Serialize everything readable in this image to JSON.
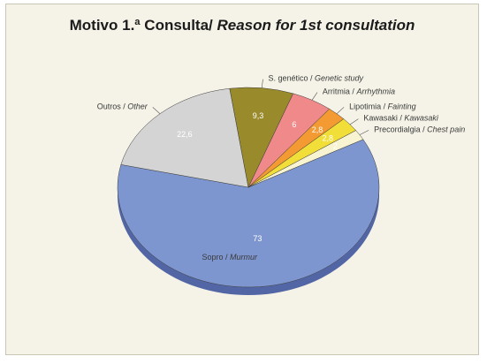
{
  "chart_data": {
    "type": "pie",
    "title_main": "Motivo 1.ª Consulta/ ",
    "title_italic": "Reason for 1st consultation",
    "slices": [
      {
        "label_pt": "Sopro / ",
        "label_en": "Murmur",
        "value": 73,
        "value_label": "73",
        "color": "#7e96cf",
        "side": "#5266a6"
      },
      {
        "label_pt": "Outros / ",
        "label_en": "Other",
        "value": 22.6,
        "value_label": "22,6",
        "color": "#d4d4d4",
        "side": "#9a9a9a"
      },
      {
        "label_pt": "S. genético / ",
        "label_en": "Genetic study",
        "value": 9.3,
        "value_label": "9,3",
        "color": "#998a2c",
        "side": "#6f631c"
      },
      {
        "label_pt": "Arritmia / ",
        "label_en": "Arrhythmia",
        "value": 6,
        "value_label": "6",
        "color": "#f08a8a",
        "side": "#c05e5e"
      },
      {
        "label_pt": "Lipotimia / ",
        "label_en": "Fainting",
        "value": 2.8,
        "value_label": "2,8",
        "color": "#f39a32",
        "side": "#c26c10"
      },
      {
        "label_pt": "Kawasaki / ",
        "label_en": "Kawasaki",
        "value": 2.8,
        "value_label": "2,8",
        "color": "#f2de38",
        "side": "#b8a418"
      },
      {
        "label_pt": "Precordialgia / ",
        "label_en": "Chest pain",
        "value": 2,
        "value_label": "2",
        "color": "#f8f4d2",
        "side": "#c9c5a3"
      }
    ]
  }
}
